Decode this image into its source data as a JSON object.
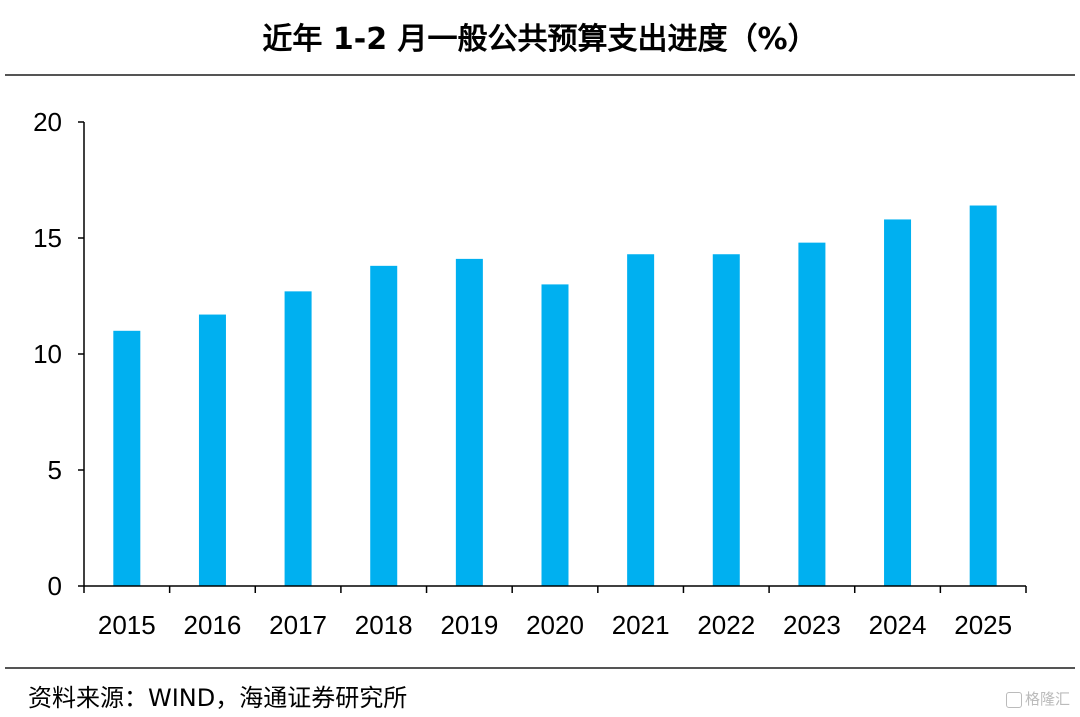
{
  "header": {
    "title": "近年 1-2 月一般公共预算支出进度（%）"
  },
  "footer": {
    "source": "资料来源：WIND，海通证券研究所",
    "watermark": "格隆汇"
  },
  "colors": {
    "bar": "#00b0f0",
    "axis": "#000000"
  },
  "chart_data": {
    "type": "bar",
    "title": "近年 1-2 月一般公共预算支出进度（%）",
    "categories": [
      "2015",
      "2016",
      "2017",
      "2018",
      "2019",
      "2020",
      "2021",
      "2022",
      "2023",
      "2024",
      "2025"
    ],
    "values": [
      11.0,
      11.7,
      12.7,
      13.8,
      14.1,
      13.0,
      14.3,
      14.3,
      14.8,
      15.8,
      16.4
    ],
    "yticks": [
      "0",
      "5",
      "10",
      "15",
      "20"
    ],
    "ylim": [
      0,
      20
    ],
    "grid": false,
    "legend": false
  }
}
